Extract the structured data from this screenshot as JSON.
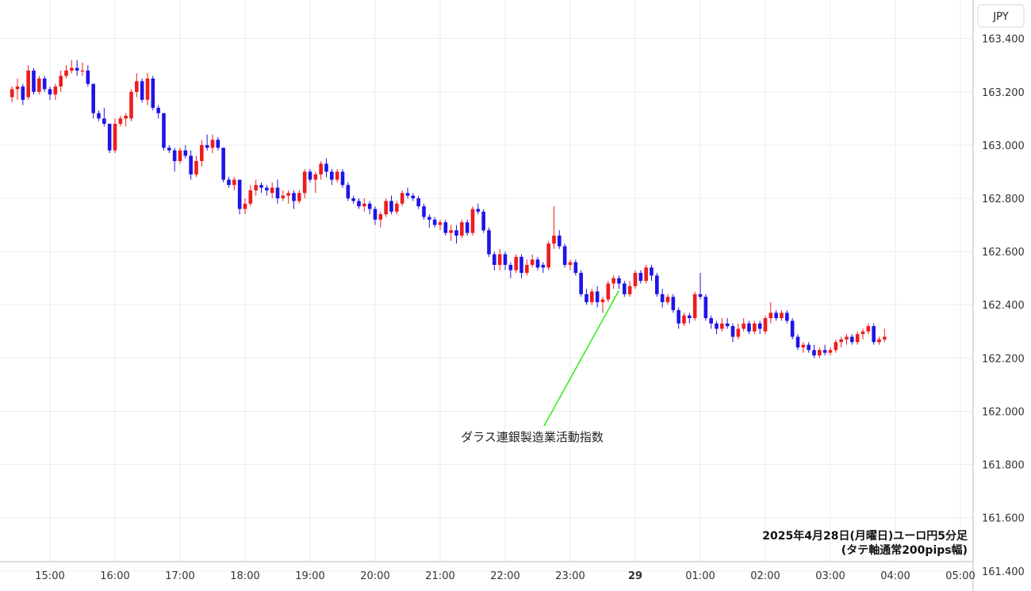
{
  "currency": "JPY",
  "annotation": "ダラス連銀製造業活動指数",
  "caption_line1": "2025年4月28日(月曜日)ユーロ円5分足",
  "caption_line2": "(タテ軸通常200pips幅)",
  "colors": {
    "up": "#ee1c1c",
    "down": "#1f14e6",
    "grid": "#e6eef2",
    "annotation_line": "#33ee22",
    "axis": "#bbbbbb"
  },
  "chart_data": {
    "type": "candlestick",
    "y_ticks": [
      "163.400",
      "163.200",
      "163.000",
      "162.800",
      "162.600",
      "162.400",
      "162.200",
      "162.000",
      "161.800",
      "161.600",
      "161.400"
    ],
    "ylim": [
      161.325,
      163.545
    ],
    "x_ticks": [
      {
        "label": "15:00",
        "bold": false
      },
      {
        "label": "16:00",
        "bold": false
      },
      {
        "label": "17:00",
        "bold": false
      },
      {
        "label": "18:00",
        "bold": false
      },
      {
        "label": "19:00",
        "bold": false
      },
      {
        "label": "20:00",
        "bold": false
      },
      {
        "label": "21:00",
        "bold": false
      },
      {
        "label": "22:00",
        "bold": false
      },
      {
        "label": "23:00",
        "bold": false
      },
      {
        "label": "29",
        "bold": true
      },
      {
        "label": "01:00",
        "bold": false
      },
      {
        "label": "02:00",
        "bold": false
      },
      {
        "label": "03:00",
        "bold": false
      },
      {
        "label": "04:00",
        "bold": false
      },
      {
        "label": "05:00",
        "bold": false
      }
    ],
    "start_time": "14:25",
    "annotation_time": "23:45",
    "candles": [
      [
        163.18,
        163.22,
        163.16,
        163.21
      ],
      [
        163.21,
        163.25,
        163.17,
        163.22
      ],
      [
        163.22,
        163.23,
        163.15,
        163.17
      ],
      [
        163.18,
        163.3,
        163.17,
        163.28
      ],
      [
        163.28,
        163.29,
        163.19,
        163.2
      ],
      [
        163.2,
        163.26,
        163.19,
        163.25
      ],
      [
        163.25,
        163.26,
        163.2,
        163.21
      ],
      [
        163.21,
        163.22,
        163.17,
        163.19
      ],
      [
        163.19,
        163.23,
        163.17,
        163.22
      ],
      [
        163.22,
        163.28,
        163.2,
        163.26
      ],
      [
        163.26,
        163.3,
        163.25,
        163.28
      ],
      [
        163.28,
        163.32,
        163.27,
        163.29
      ],
      [
        163.29,
        163.32,
        163.26,
        163.28
      ],
      [
        163.28,
        163.31,
        163.26,
        163.28
      ],
      [
        163.28,
        163.3,
        163.22,
        163.23
      ],
      [
        163.23,
        163.23,
        163.1,
        163.12
      ],
      [
        163.12,
        163.13,
        163.09,
        163.1
      ],
      [
        163.1,
        163.14,
        163.07,
        163.08
      ],
      [
        163.08,
        163.08,
        162.97,
        162.98
      ],
      [
        162.98,
        163.1,
        162.97,
        163.08
      ],
      [
        163.08,
        163.11,
        163.07,
        163.1
      ],
      [
        163.1,
        163.12,
        163.07,
        163.11
      ],
      [
        163.1,
        163.21,
        163.09,
        163.2
      ],
      [
        163.2,
        163.27,
        163.18,
        163.24
      ],
      [
        163.24,
        163.25,
        163.16,
        163.17
      ],
      [
        163.17,
        163.27,
        163.15,
        163.25
      ],
      [
        163.25,
        163.26,
        163.13,
        163.14
      ],
      [
        163.14,
        163.15,
        163.1,
        163.12
      ],
      [
        163.12,
        163.12,
        162.98,
        162.99
      ],
      [
        162.99,
        163.0,
        162.97,
        162.98
      ],
      [
        162.98,
        162.99,
        162.9,
        162.94
      ],
      [
        162.94,
        162.99,
        162.93,
        162.98
      ],
      [
        162.98,
        163.0,
        162.95,
        162.96
      ],
      [
        162.96,
        162.98,
        162.87,
        162.89
      ],
      [
        162.89,
        162.96,
        162.88,
        162.94
      ],
      [
        162.94,
        163.02,
        162.92,
        163.0
      ],
      [
        163.0,
        163.04,
        162.98,
        162.99
      ],
      [
        162.99,
        163.04,
        162.97,
        163.02
      ],
      [
        163.02,
        163.03,
        162.98,
        162.99
      ],
      [
        162.99,
        162.99,
        162.86,
        162.87
      ],
      [
        162.87,
        162.88,
        162.84,
        162.85
      ],
      [
        162.85,
        162.88,
        162.83,
        162.87
      ],
      [
        162.87,
        162.87,
        162.74,
        162.76
      ],
      [
        162.76,
        162.8,
        162.74,
        162.78
      ],
      [
        162.78,
        162.85,
        162.77,
        162.83
      ],
      [
        162.83,
        162.87,
        162.81,
        162.85
      ],
      [
        162.85,
        162.86,
        162.82,
        162.84
      ],
      [
        162.84,
        162.85,
        162.81,
        162.83
      ],
      [
        162.82,
        162.86,
        162.8,
        162.84
      ],
      [
        162.84,
        162.87,
        162.78,
        162.8
      ],
      [
        162.8,
        162.83,
        162.79,
        162.81
      ],
      [
        162.81,
        162.83,
        162.78,
        162.82
      ],
      [
        162.82,
        162.83,
        162.76,
        162.79
      ],
      [
        162.79,
        162.83,
        162.78,
        162.82
      ],
      [
        162.82,
        162.91,
        162.8,
        162.9
      ],
      [
        162.9,
        162.91,
        162.86,
        162.87
      ],
      [
        162.87,
        162.9,
        162.82,
        162.89
      ],
      [
        162.89,
        162.94,
        162.87,
        162.93
      ],
      [
        162.93,
        162.95,
        162.88,
        162.9
      ],
      [
        162.9,
        162.91,
        162.85,
        162.87
      ],
      [
        162.87,
        162.91,
        162.86,
        162.9
      ],
      [
        162.9,
        162.91,
        162.84,
        162.85
      ],
      [
        162.85,
        162.86,
        162.79,
        162.8
      ],
      [
        162.8,
        162.81,
        162.78,
        162.79
      ],
      [
        162.79,
        162.8,
        162.76,
        162.77
      ],
      [
        162.77,
        162.8,
        162.75,
        162.78
      ],
      [
        162.78,
        162.79,
        162.74,
        162.76
      ],
      [
        162.76,
        162.77,
        162.7,
        162.72
      ],
      [
        162.72,
        162.75,
        162.69,
        162.74
      ],
      [
        162.74,
        162.8,
        162.73,
        162.79
      ],
      [
        162.79,
        162.81,
        162.74,
        162.75
      ],
      [
        162.75,
        162.79,
        162.74,
        162.78
      ],
      [
        162.78,
        162.83,
        162.77,
        162.82
      ],
      [
        162.82,
        162.84,
        162.8,
        162.81
      ],
      [
        162.81,
        162.82,
        162.79,
        162.8
      ],
      [
        162.8,
        162.81,
        162.76,
        162.77
      ],
      [
        162.77,
        162.78,
        162.72,
        162.73
      ],
      [
        162.73,
        162.74,
        162.69,
        162.72
      ],
      [
        162.72,
        162.73,
        162.69,
        162.7
      ],
      [
        162.7,
        162.72,
        162.68,
        162.71
      ],
      [
        162.71,
        162.72,
        162.66,
        162.67
      ],
      [
        162.67,
        162.7,
        162.64,
        162.68
      ],
      [
        162.68,
        162.7,
        162.63,
        162.66
      ],
      [
        162.66,
        162.72,
        162.65,
        162.71
      ],
      [
        162.71,
        162.72,
        162.66,
        162.67
      ],
      [
        162.67,
        162.77,
        162.66,
        162.76
      ],
      [
        162.76,
        162.78,
        162.74,
        162.75
      ],
      [
        162.75,
        162.76,
        162.67,
        162.68
      ],
      [
        162.68,
        162.69,
        162.58,
        162.59
      ],
      [
        162.59,
        162.6,
        162.53,
        162.55
      ],
      [
        162.55,
        162.61,
        162.53,
        162.59
      ],
      [
        162.59,
        162.6,
        162.53,
        162.55
      ],
      [
        162.55,
        162.56,
        162.5,
        162.53
      ],
      [
        162.53,
        162.59,
        162.52,
        162.58
      ],
      [
        162.58,
        162.59,
        162.5,
        162.52
      ],
      [
        162.52,
        162.57,
        162.51,
        162.55
      ],
      [
        162.55,
        162.59,
        162.54,
        162.57
      ],
      [
        162.57,
        162.58,
        162.53,
        162.54
      ],
      [
        162.55,
        162.56,
        162.52,
        162.54
      ],
      [
        162.54,
        162.64,
        162.53,
        162.63
      ],
      [
        162.63,
        162.77,
        162.61,
        162.66
      ],
      [
        162.66,
        162.68,
        162.61,
        162.62
      ],
      [
        162.62,
        162.63,
        162.54,
        162.55
      ],
      [
        162.55,
        162.57,
        162.53,
        162.56
      ],
      [
        162.56,
        162.57,
        162.51,
        162.52
      ],
      [
        162.52,
        162.53,
        162.43,
        162.44
      ],
      [
        162.44,
        162.46,
        162.4,
        162.41
      ],
      [
        162.41,
        162.46,
        162.4,
        162.45
      ],
      [
        162.45,
        162.47,
        162.39,
        162.41
      ],
      [
        162.41,
        162.43,
        162.37,
        162.42
      ],
      [
        162.42,
        162.49,
        162.41,
        162.48
      ],
      [
        162.48,
        162.51,
        162.46,
        162.5
      ],
      [
        162.5,
        162.51,
        162.46,
        162.48
      ],
      [
        162.48,
        162.49,
        162.43,
        162.44
      ],
      [
        162.44,
        162.49,
        162.43,
        162.47
      ],
      [
        162.47,
        162.53,
        162.46,
        162.52
      ],
      [
        162.52,
        162.53,
        162.48,
        162.49
      ],
      [
        162.49,
        162.55,
        162.48,
        162.54
      ],
      [
        162.54,
        162.55,
        162.49,
        162.51
      ],
      [
        162.51,
        162.52,
        162.43,
        162.44
      ],
      [
        162.44,
        162.46,
        162.39,
        162.41
      ],
      [
        162.41,
        162.44,
        162.4,
        162.43
      ],
      [
        162.43,
        162.44,
        162.37,
        162.38
      ],
      [
        162.38,
        162.39,
        162.31,
        162.33
      ],
      [
        162.33,
        162.37,
        162.32,
        162.36
      ],
      [
        162.36,
        162.37,
        162.33,
        162.35
      ],
      [
        162.35,
        162.45,
        162.34,
        162.44
      ],
      [
        162.44,
        162.52,
        162.42,
        162.43
      ],
      [
        162.43,
        162.44,
        162.34,
        162.35
      ],
      [
        162.35,
        162.36,
        162.31,
        162.33
      ],
      [
        162.33,
        162.34,
        162.29,
        162.31
      ],
      [
        162.31,
        162.35,
        162.3,
        162.33
      ],
      [
        162.33,
        162.35,
        162.31,
        162.32
      ],
      [
        162.32,
        162.33,
        162.26,
        162.28
      ],
      [
        162.28,
        162.33,
        162.27,
        162.31
      ],
      [
        162.31,
        162.35,
        162.3,
        162.33
      ],
      [
        162.33,
        162.34,
        162.29,
        162.3
      ],
      [
        162.3,
        162.34,
        162.29,
        162.33
      ],
      [
        162.33,
        162.34,
        162.29,
        162.31
      ],
      [
        162.3,
        162.36,
        162.29,
        162.35
      ],
      [
        162.35,
        162.41,
        162.33,
        162.37
      ],
      [
        162.37,
        162.38,
        162.34,
        162.35
      ],
      [
        162.35,
        162.38,
        162.34,
        162.37
      ],
      [
        162.37,
        162.38,
        162.33,
        162.34
      ],
      [
        162.34,
        162.35,
        162.27,
        162.28
      ],
      [
        162.28,
        162.29,
        162.23,
        162.24
      ],
      [
        162.24,
        162.26,
        162.22,
        162.25
      ],
      [
        162.25,
        162.26,
        162.22,
        162.23
      ],
      [
        162.23,
        162.25,
        162.2,
        162.21
      ],
      [
        162.21,
        162.24,
        162.2,
        162.23
      ],
      [
        162.23,
        162.25,
        162.21,
        162.22
      ],
      [
        162.22,
        162.24,
        162.21,
        162.23
      ],
      [
        162.23,
        162.27,
        162.22,
        162.26
      ],
      [
        162.26,
        162.28,
        162.24,
        162.27
      ],
      [
        162.27,
        162.29,
        162.25,
        162.28
      ],
      [
        162.28,
        162.29,
        162.25,
        162.26
      ],
      [
        162.26,
        162.3,
        162.25,
        162.29
      ],
      [
        162.29,
        162.31,
        162.27,
        162.3
      ],
      [
        162.3,
        162.33,
        162.29,
        162.32
      ],
      [
        162.32,
        162.33,
        162.25,
        162.26
      ],
      [
        162.26,
        162.28,
        162.25,
        162.27
      ],
      [
        162.27,
        162.31,
        162.26,
        162.28
      ]
    ]
  }
}
